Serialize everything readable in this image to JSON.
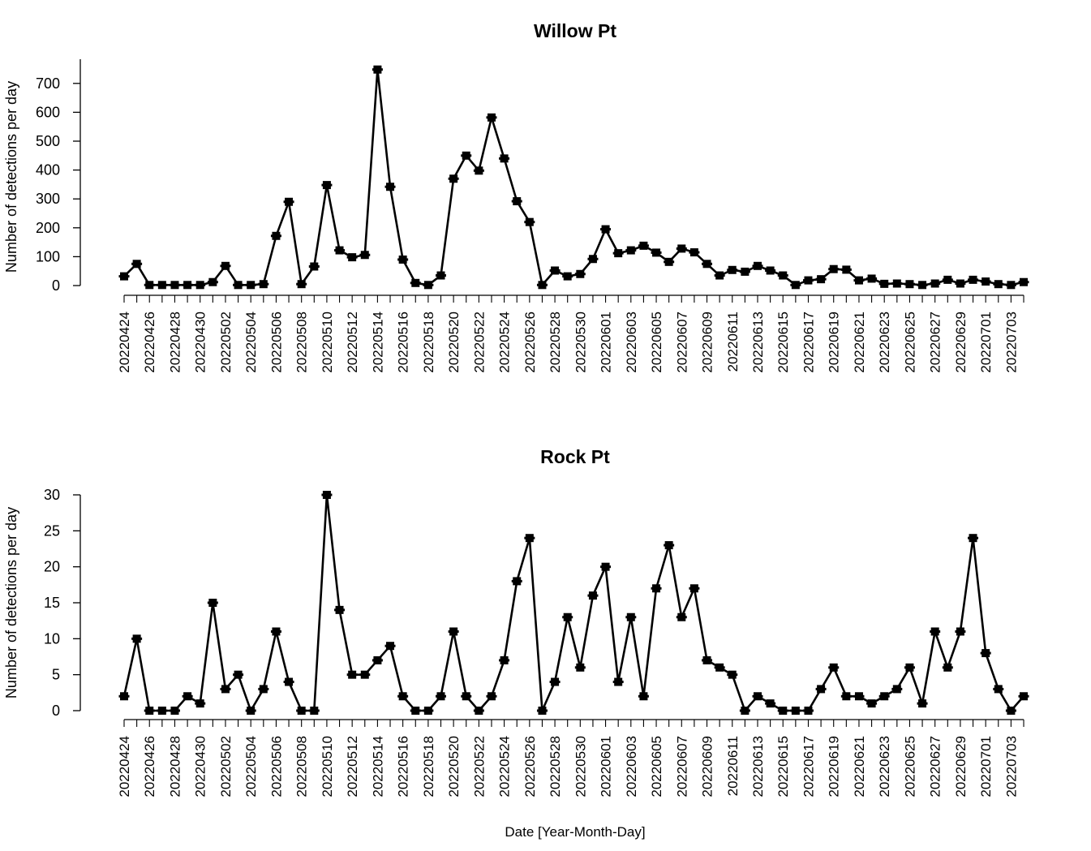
{
  "x_axis_label": "Date [Year-Month-Day]",
  "chart_data": [
    {
      "type": "line",
      "title": "Willow Pt",
      "ylabel": "Number of detections per day",
      "xlabel": "",
      "ylim": [
        0,
        750
      ],
      "yticks": [
        0,
        100,
        200,
        300,
        400,
        500,
        600,
        700
      ],
      "x": [
        "20220424",
        "20220425",
        "20220426",
        "20220427",
        "20220428",
        "20220429",
        "20220430",
        "20220501",
        "20220502",
        "20220503",
        "20220504",
        "20220505",
        "20220506",
        "20220507",
        "20220508",
        "20220509",
        "20220510",
        "20220511",
        "20220512",
        "20220513",
        "20220514",
        "20220515",
        "20220516",
        "20220517",
        "20220518",
        "20220519",
        "20220520",
        "20220521",
        "20220522",
        "20220523",
        "20220524",
        "20220525",
        "20220526",
        "20220527",
        "20220528",
        "20220529",
        "20220530",
        "20220531",
        "20220601",
        "20220602",
        "20220603",
        "20220604",
        "20220605",
        "20220606",
        "20220607",
        "20220608",
        "20220609",
        "20220610",
        "20220611",
        "20220612",
        "20220613",
        "20220614",
        "20220615",
        "20220616",
        "20220617",
        "20220618",
        "20220619",
        "20220620",
        "20220621",
        "20220622",
        "20220623",
        "20220624",
        "20220625",
        "20220626",
        "20220627",
        "20220628",
        "20220629",
        "20220630",
        "20220701",
        "20220702",
        "20220703",
        "20220704"
      ],
      "tick_labels": [
        "20220424",
        "20220426",
        "20220428",
        "20220430",
        "20220502",
        "20220504",
        "20220506",
        "20220508",
        "20220510",
        "20220512",
        "20220514",
        "20220516",
        "20220518",
        "20220520",
        "20220522",
        "20220524",
        "20220526",
        "20220528",
        "20220530",
        "20220601",
        "20220603",
        "20220605",
        "20220607",
        "20220609",
        "20220611",
        "20220613",
        "20220615",
        "20220617",
        "20220619",
        "20220621",
        "20220623",
        "20220625",
        "20220627",
        "20220629",
        "20220701",
        "20220703"
      ],
      "values": [
        32,
        75,
        2,
        2,
        2,
        2,
        2,
        12,
        68,
        2,
        2,
        5,
        172,
        290,
        5,
        66,
        348,
        122,
        98,
        106,
        748,
        342,
        90,
        9,
        2,
        35,
        370,
        450,
        398,
        582,
        440,
        292,
        220,
        2,
        52,
        32,
        40,
        92,
        195,
        112,
        122,
        138,
        114,
        82,
        128,
        115,
        75,
        35,
        54,
        48,
        68,
        52,
        35,
        2,
        18,
        22,
        57,
        55,
        18,
        24,
        6,
        7,
        5,
        2,
        7,
        20,
        7,
        20,
        14,
        5,
        2,
        12
      ]
    },
    {
      "type": "line",
      "title": "Rock Pt",
      "ylabel": "Number of detections per day",
      "xlabel": "Date [Year-Month-Day]",
      "ylim": [
        0,
        30
      ],
      "yticks": [
        0,
        5,
        10,
        15,
        20,
        25,
        30
      ],
      "x": [
        "20220424",
        "20220425",
        "20220426",
        "20220427",
        "20220428",
        "20220429",
        "20220430",
        "20220501",
        "20220502",
        "20220503",
        "20220504",
        "20220505",
        "20220506",
        "20220507",
        "20220508",
        "20220509",
        "20220510",
        "20220511",
        "20220512",
        "20220513",
        "20220514",
        "20220515",
        "20220516",
        "20220517",
        "20220518",
        "20220519",
        "20220520",
        "20220521",
        "20220522",
        "20220523",
        "20220524",
        "20220525",
        "20220526",
        "20220527",
        "20220528",
        "20220529",
        "20220530",
        "20220531",
        "20220601",
        "20220602",
        "20220603",
        "20220604",
        "20220605",
        "20220606",
        "20220607",
        "20220608",
        "20220609",
        "20220610",
        "20220611",
        "20220612",
        "20220613",
        "20220614",
        "20220615",
        "20220616",
        "20220617",
        "20220618",
        "20220619",
        "20220620",
        "20220621",
        "20220622",
        "20220623",
        "20220624",
        "20220625",
        "20220626",
        "20220627",
        "20220628",
        "20220629",
        "20220630",
        "20220701",
        "20220702",
        "20220703",
        "20220704"
      ],
      "tick_labels": [
        "20220424",
        "20220426",
        "20220428",
        "20220430",
        "20220502",
        "20220504",
        "20220506",
        "20220508",
        "20220510",
        "20220512",
        "20220514",
        "20220516",
        "20220518",
        "20220520",
        "20220522",
        "20220524",
        "20220526",
        "20220528",
        "20220530",
        "20220601",
        "20220603",
        "20220605",
        "20220607",
        "20220609",
        "20220611",
        "20220613",
        "20220615",
        "20220617",
        "20220619",
        "20220621",
        "20220623",
        "20220625",
        "20220627",
        "20220629",
        "20220701",
        "20220703"
      ],
      "values": [
        2,
        10,
        0,
        0,
        0,
        2,
        1,
        15,
        3,
        5,
        0,
        3,
        11,
        4,
        0,
        0,
        30,
        14,
        5,
        5,
        7,
        9,
        2,
        0,
        0,
        2,
        11,
        2,
        0,
        2,
        7,
        18,
        24,
        0,
        4,
        13,
        6,
        16,
        20,
        4,
        13,
        2,
        17,
        23,
        13,
        17,
        7,
        6,
        5,
        0,
        2,
        1,
        0,
        0,
        0,
        3,
        6,
        2,
        2,
        1,
        2,
        3,
        6,
        1,
        11,
        6,
        11,
        24,
        8,
        3,
        0,
        2
      ]
    }
  ]
}
